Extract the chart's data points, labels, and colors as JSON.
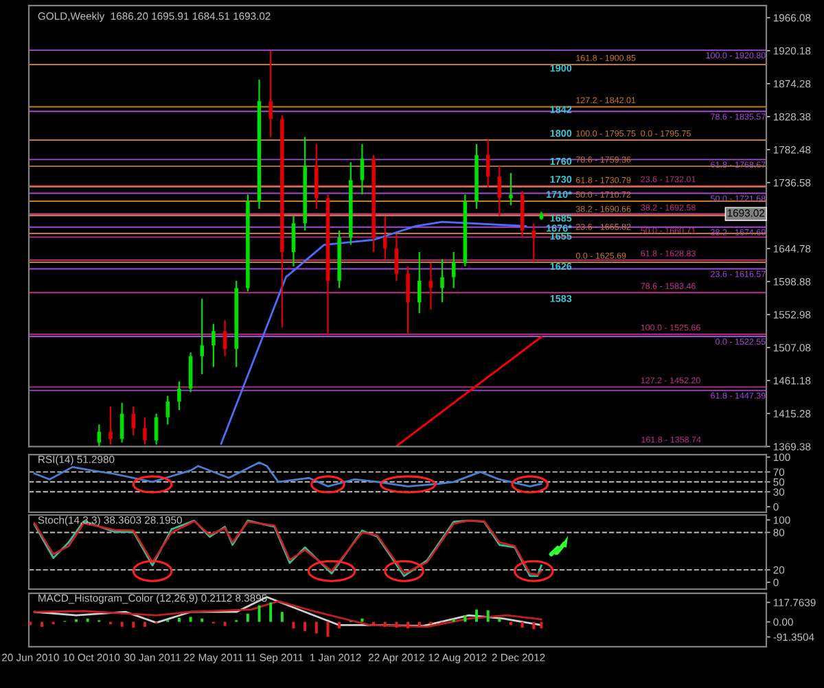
{
  "chart_data": [
    {
      "type": "candlestick",
      "title": "GOLD,Weekly  1686.20 1695.91 1684.51 1693.02",
      "tick_labels": "y",
      "xlim": [
        "2010-06-17",
        "2014-03-02"
      ],
      "ylim": [
        1369.38,
        1983
      ],
      "yticks": [
        1369.38,
        1415.28,
        1461.18,
        1507.08,
        1552.98,
        1598.88,
        1644.78,
        1736.58,
        1782.48,
        1828.38,
        1874.28,
        1920.18,
        1966.08
      ],
      "x": [
        "2010-10-24",
        "2010-11-14",
        "2010-12-05",
        "2010-12-26",
        "2011-01-16",
        "2011-02-06",
        "2011-02-27",
        "2011-03-20",
        "2011-04-10",
        "2011-05-01",
        "2011-05-22",
        "2011-06-12",
        "2011-07-03",
        "2011-07-24",
        "2011-08-14",
        "2011-09-04",
        "2011-09-25",
        "2011-10-16",
        "2011-11-06",
        "2011-11-27",
        "2011-12-18",
        "2012-01-08",
        "2012-01-29",
        "2012-02-19",
        "2012-03-11",
        "2012-04-01",
        "2012-04-22",
        "2012-05-13",
        "2012-06-03",
        "2012-06-24",
        "2012-07-15",
        "2012-08-05",
        "2012-08-26",
        "2012-09-16",
        "2012-10-07",
        "2012-10-28",
        "2012-11-18",
        "2012-12-09",
        "2012-12-30",
        "2013-01-13"
      ],
      "ohlc": [
        [
          1375,
          1400,
          1370,
          1390
        ],
        [
          1390,
          1425,
          1372,
          1380
        ],
        [
          1380,
          1430,
          1375,
          1415
        ],
        [
          1415,
          1425,
          1385,
          1395
        ],
        [
          1395,
          1410,
          1372,
          1378
        ],
        [
          1378,
          1415,
          1372,
          1410
        ],
        [
          1410,
          1440,
          1400,
          1432
        ],
        [
          1432,
          1460,
          1420,
          1450
        ],
        [
          1450,
          1500,
          1445,
          1495
        ],
        [
          1495,
          1575,
          1470,
          1510
        ],
        [
          1510,
          1540,
          1480,
          1530
        ],
        [
          1530,
          1545,
          1495,
          1505
        ],
        [
          1505,
          1600,
          1480,
          1590
        ],
        [
          1590,
          1720,
          1585,
          1710
        ],
        [
          1710,
          1880,
          1700,
          1850
        ],
        [
          1850,
          1920,
          1800,
          1825
        ],
        [
          1825,
          1830,
          1535,
          1640
        ],
        [
          1640,
          1690,
          1620,
          1680
        ],
        [
          1680,
          1800,
          1670,
          1760
        ],
        [
          1760,
          1790,
          1700,
          1715
        ],
        [
          1715,
          1720,
          1525,
          1600
        ],
        [
          1600,
          1670,
          1590,
          1660
        ],
        [
          1660,
          1765,
          1650,
          1740
        ],
        [
          1740,
          1790,
          1720,
          1770
        ],
        [
          1770,
          1775,
          1640,
          1660
        ],
        [
          1660,
          1690,
          1630,
          1645
        ],
        [
          1645,
          1665,
          1600,
          1610
        ],
        [
          1610,
          1620,
          1527,
          1570
        ],
        [
          1570,
          1640,
          1555,
          1600
        ],
        [
          1600,
          1625,
          1560,
          1590
        ],
        [
          1590,
          1630,
          1570,
          1605
        ],
        [
          1605,
          1640,
          1590,
          1625
        ],
        [
          1625,
          1720,
          1620,
          1710
        ],
        [
          1710,
          1790,
          1700,
          1775
        ],
        [
          1775,
          1796,
          1730,
          1745
        ],
        [
          1745,
          1760,
          1690,
          1715
        ],
        [
          1715,
          1750,
          1705,
          1720
        ],
        [
          1720,
          1725,
          1660,
          1670
        ],
        [
          1670,
          1680,
          1626,
          1660
        ],
        [
          1686.2,
          1695.91,
          1684.51,
          1693.02
        ]
      ],
      "colors": [
        "#00e000",
        "#e00000",
        "#00e000",
        "#e00000",
        "#e00000",
        "#00e000",
        "#00e000",
        "#00e000",
        "#00e000",
        "#00e000",
        "#00e000",
        "#e00000",
        "#00e000",
        "#00e000",
        "#00e000",
        "#e00000",
        "#e00000",
        "#00e000",
        "#00e000",
        "#e00000",
        "#e00000",
        "#00e000",
        "#00e000",
        "#00e000",
        "#e00000",
        "#e00000",
        "#e00000",
        "#e00000",
        "#00e000",
        "#e00000",
        "#00e000",
        "#00e000",
        "#00e000",
        "#00e000",
        "#e00000",
        "#e00000",
        "#00e000",
        "#e00000",
        "#e00000",
        "#00e000"
      ],
      "series": [
        {
          "type": "line",
          "color": "#4f6bff",
          "x": [
            "2011-06-05",
            "2011-10-02",
            "2011-12-11",
            "2012-03-11",
            "2012-05-27",
            "2012-07-15",
            "2012-12-16"
          ],
          "values": [
            1373,
            1605,
            1650,
            1657,
            1676,
            1682,
            1676
          ]
        },
        {
          "type": "line",
          "color": "#ff0000",
          "x": [
            "2012-04-22",
            "2013-01-13"
          ],
          "values": [
            1370,
            1522
          ]
        }
      ],
      "ref_lines": [
        {
          "axis": "y",
          "value": 1900.85,
          "color": "#c87a1e"
        },
        {
          "axis": "y",
          "value": 1842.01,
          "color": "#c87a1e"
        },
        {
          "axis": "y",
          "value": 1795.75,
          "color": "#c87a1e"
        },
        {
          "axis": "y",
          "value": 1759.36,
          "color": "#c87a1e"
        },
        {
          "axis": "y",
          "value": 1730.79,
          "color": "#c87a1e"
        },
        {
          "axis": "y",
          "value": 1710.72,
          "color": "#c87a1e"
        },
        {
          "axis": "y",
          "value": 1690.66,
          "color": "#c87a1e"
        },
        {
          "axis": "y",
          "value": 1665.82,
          "color": "#c87a1e"
        },
        {
          "axis": "y",
          "value": 1625.69,
          "color": "#c87a1e"
        },
        {
          "axis": "y",
          "value": 1732.01,
          "color": "#c0308a"
        },
        {
          "axis": "y",
          "value": 1692.58,
          "color": "#c0308a"
        },
        {
          "axis": "y",
          "value": 1660.71,
          "color": "#c0308a"
        },
        {
          "axis": "y",
          "value": 1628.83,
          "color": "#c0308a"
        },
        {
          "axis": "y",
          "value": 1583.46,
          "color": "#c0308a"
        },
        {
          "axis": "y",
          "value": 1525.66,
          "color": "#c0308a"
        },
        {
          "axis": "y",
          "value": 1452.2,
          "color": "#c0308a"
        },
        {
          "axis": "y",
          "value": 1920.8,
          "color": "#a848d8"
        },
        {
          "axis": "y",
          "value": 1835.57,
          "color": "#a848d8"
        },
        {
          "axis": "y",
          "value": 1768.67,
          "color": "#a848d8"
        },
        {
          "axis": "y",
          "value": 1721.68,
          "color": "#a848d8"
        },
        {
          "axis": "y",
          "value": 1674.69,
          "color": "#a848d8"
        },
        {
          "axis": "y",
          "value": 1616.57,
          "color": "#a848d8"
        },
        {
          "axis": "y",
          "value": 1522.55,
          "color": "#a848d8"
        },
        {
          "axis": "y",
          "value": 1447.39,
          "color": "#a848d8"
        },
        {
          "axis": "y",
          "value": 1693.02,
          "label": "1693.02",
          "color": "#808080"
        }
      ],
      "annotations": [
        {
          "text": "1900",
          "x": "2013-03-10",
          "y": 1894.6
        },
        {
          "text": "1842",
          "x": "2013-03-10",
          "y": 1837
        },
        {
          "text": "1800",
          "x": "2013-03-10",
          "y": 1804
        },
        {
          "text": "1760",
          "x": "2013-03-10",
          "y": 1765
        },
        {
          "text": "1730",
          "x": "2013-03-10",
          "y": 1740
        },
        {
          "text": "1710*",
          "x": "2013-03-10",
          "y": 1719
        },
        {
          "text": "1685",
          "x": "2013-03-10",
          "y": 1686
        },
        {
          "text": "1676*",
          "x": "2013-03-10",
          "y": 1672
        },
        {
          "text": "1655",
          "x": "2013-03-10",
          "y": 1661
        },
        {
          "text": "1626",
          "x": "2013-03-10",
          "y": 1619
        },
        {
          "text": "1583",
          "x": "2013-03-10",
          "y": 1574
        },
        {
          "text": "161.8 - 1900.85",
          "x": "2013-03-17",
          "y": 1900.85
        },
        {
          "text": "127.2 - 1842.01",
          "x": "2013-03-17",
          "y": 1842.01
        },
        {
          "text": "100.0 - 1795.75",
          "x": "2013-03-17",
          "y": 1795.75
        },
        {
          "text": "78.6 - 1759.36",
          "x": "2013-03-17",
          "y": 1759.36
        },
        {
          "text": "61.8 - 1730.79",
          "x": "2013-03-17",
          "y": 1730.79
        },
        {
          "text": "50.0 - 1710.72",
          "x": "2013-03-17",
          "y": 1710.72
        },
        {
          "text": "38.2 - 1690.66",
          "x": "2013-03-17",
          "y": 1690.66
        },
        {
          "text": "23.6 - 1665.82",
          "x": "2013-03-17",
          "y": 1665.82
        },
        {
          "text": "0.0 - 1625.69",
          "x": "2013-03-17",
          "y": 1625.69
        },
        {
          "text": "0.0 - 1795.75",
          "x": "2013-07-14",
          "y": 1795.75
        },
        {
          "text": "23.6 - 1732.01",
          "x": "2013-07-14",
          "y": 1732.01
        },
        {
          "text": "38.2 - 1692.58",
          "x": "2013-07-14",
          "y": 1692.58
        },
        {
          "text": "50.0 - 1660.71",
          "x": "2013-07-14",
          "y": 1660.71
        },
        {
          "text": "61.8 - 1628.83",
          "x": "2013-07-14",
          "y": 1628.83
        },
        {
          "text": "78.6 - 1583.46",
          "x": "2013-07-14",
          "y": 1583.46
        },
        {
          "text": "100.0 - 1525.66",
          "x": "2013-07-14",
          "y": 1525.66
        },
        {
          "text": "127.2 - 1452.20",
          "x": "2013-07-14",
          "y": 1452.2
        },
        {
          "text": "100.0 - 1920.80",
          "x": "2014-03-01",
          "y": 1920.8
        },
        {
          "text": "78.6 - 1835.57",
          "x": "2014-03-01",
          "y": 1835.57
        },
        {
          "text": "61.8 - 1768.67",
          "x": "2014-03-01",
          "y": 1768.67
        },
        {
          "text": "50.0 - 1721.68",
          "x": "2014-03-01",
          "y": 1721.68
        },
        {
          "text": "38.2 - 1674.69",
          "x": "2014-03-01",
          "y": 1674.69
        },
        {
          "text": "23.6 - 1616.57",
          "x": "2014-03-01",
          "y": 1616.57
        },
        {
          "text": "0.0 - 1522.55",
          "x": "2014-03-01",
          "y": 1522.55
        },
        {
          "text": "61.8 - 1447.39",
          "x": "2014-03-01",
          "y": 1447.39
        },
        "161.8 - 1358.74"
      ]
    },
    {
      "type": "line",
      "title": "RSI(14) 51.2980",
      "tick_labels": "y",
      "xlim": [
        "2010-06-17",
        "2014-03-02"
      ],
      "ylim": [
        -11,
        105
      ],
      "yticks": [
        0,
        30,
        50,
        70,
        100
      ],
      "series": [
        {
          "color": "#4a7fd0",
          "x": [
            "2010-06-27",
            "2010-07-25",
            "2010-09-05",
            "2010-10-10",
            "2010-11-21",
            "2011-01-30",
            "2011-04-10",
            "2011-04-24",
            "2011-06-19",
            "2011-08-14",
            "2011-08-28",
            "2011-09-18",
            "2011-11-13",
            "2011-12-18",
            "2012-02-05",
            "2012-03-18",
            "2012-05-13",
            "2012-07-08",
            "2012-08-05",
            "2012-09-23",
            "2012-10-28",
            "2012-12-23",
            "2013-01-13"
          ],
          "values": [
            67,
            55,
            80,
            73,
            66,
            50,
            73,
            82,
            58,
            89,
            82,
            50,
            58,
            41,
            55,
            50,
            41,
            46,
            50,
            70,
            55,
            41,
            46
          ]
        }
      ],
      "ref_lines": [
        {
          "axis": "y",
          "value": 70,
          "color": "#c0c0c0",
          "line_style": "dashed"
        },
        {
          "axis": "y",
          "value": 50,
          "color": "#c0c0c0",
          "line_style": "dashed"
        },
        {
          "axis": "y",
          "value": 30,
          "color": "#c0c0c0",
          "line_style": "dashed"
        }
      ]
    },
    {
      "type": "line",
      "title": "Stoch(14,3,3) 38.3603 28.1950",
      "tick_labels": "y",
      "xlim": [
        "2010-06-17",
        "2014-03-02"
      ],
      "ylim": [
        -11,
        108
      ],
      "yticks": [
        0,
        20,
        80,
        100
      ],
      "series": [
        {
          "color": "#30c0a0",
          "x": [
            "2010-06-27",
            "2010-08-01",
            "2010-08-29",
            "2010-09-26",
            "2010-11-21",
            "2010-12-26",
            "2011-01-30",
            "2011-03-06",
            "2011-04-17",
            "2011-05-15",
            "2011-06-12",
            "2011-06-26",
            "2011-07-24",
            "2011-09-11",
            "2011-10-09",
            "2011-11-06",
            "2011-12-25",
            "2012-02-19",
            "2012-03-18",
            "2012-05-06",
            "2012-06-17",
            "2012-08-05",
            "2012-09-02",
            "2012-09-30",
            "2012-10-28",
            "2012-11-25",
            "2012-12-23",
            "2013-01-06",
            "2013-01-13"
          ],
          "values": [
            93,
            39,
            64,
            98,
            81,
            81,
            27,
            85,
            99,
            73,
            89,
            60,
            99,
            89,
            31,
            56,
            14,
            83,
            73,
            10,
            35,
            97,
            99,
            97,
            60,
            56,
            10,
            10,
            27
          ]
        },
        {
          "color": "#d02020",
          "x": [
            "2010-06-27",
            "2010-08-01",
            "2010-08-29",
            "2010-09-26",
            "2010-11-21",
            "2010-12-26",
            "2011-01-30",
            "2011-03-06",
            "2011-04-17",
            "2011-05-15",
            "2011-06-12",
            "2011-06-26",
            "2011-07-24",
            "2011-09-11",
            "2011-10-09",
            "2011-11-06",
            "2011-12-25",
            "2012-02-19",
            "2012-03-18",
            "2012-05-06",
            "2012-06-17",
            "2012-08-05",
            "2012-09-02",
            "2012-09-30",
            "2012-10-28",
            "2012-11-25",
            "2012-12-23",
            "2013-01-06",
            "2013-01-13"
          ],
          "values": [
            95,
            45,
            58,
            95,
            84,
            83,
            32,
            80,
            98,
            76,
            87,
            64,
            97,
            91,
            36,
            52,
            18,
            80,
            75,
            14,
            32,
            94,
            99,
            98,
            64,
            58,
            14,
            12,
            18
          ]
        }
      ],
      "ref_lines": [
        {
          "axis": "y",
          "value": 80,
          "color": "#c0c0c0",
          "line_style": "dashed"
        },
        {
          "axis": "y",
          "value": 20,
          "color": "#c0c0c0",
          "line_style": "dashed"
        }
      ]
    },
    {
      "type": "bar",
      "title": "MACD_Histogram_Color (12,26,9) 0.2112 8.3895",
      "xlim": [
        "2010-06-17",
        "2014-03-02"
      ],
      "ylim": [
        -151,
        173
      ],
      "yticks": [
        {
          "value": -91.3504,
          "label": "-91.3504"
        },
        {
          "value": 0,
          "label": "0.00"
        },
        {
          "value": 117.7639,
          "label": "117.7639"
        }
      ],
      "xticks": [
        {
          "value": "2010-06-20",
          "label": "20 Jun 2010"
        },
        {
          "value": "2010-10-10",
          "label": "10 Oct 2010"
        },
        {
          "value": "2011-01-30",
          "label": "30 Jan 2011"
        },
        {
          "value": "2011-05-22",
          "label": "22 May 2011"
        },
        {
          "value": "2011-09-11",
          "label": "11 Sep 2011"
        },
        {
          "value": "2012-01-01",
          "label": "1 Jan 2012"
        },
        {
          "value": "2012-04-22",
          "label": "22 Apr 2012"
        },
        {
          "value": "2012-08-12",
          "label": "12 Aug 2012"
        },
        {
          "value": "2012-12-02",
          "label": "2 Dec 2012"
        }
      ],
      "series": [
        {
          "type": "bar",
          "x": [
            "2010-06-20",
            "2010-07-11",
            "2010-08-01",
            "2010-08-22",
            "2010-09-12",
            "2010-10-03",
            "2010-10-24",
            "2010-11-14",
            "2010-12-05",
            "2010-12-26",
            "2011-01-16",
            "2011-02-06",
            "2011-02-27",
            "2011-03-20",
            "2011-04-10",
            "2011-05-01",
            "2011-05-22",
            "2011-06-12",
            "2011-07-03",
            "2011-07-24",
            "2011-08-14",
            "2011-09-04",
            "2011-09-25",
            "2011-10-16",
            "2011-11-06",
            "2011-11-27",
            "2011-12-18",
            "2012-01-08",
            "2012-01-29",
            "2012-02-19",
            "2012-03-11",
            "2012-04-01",
            "2012-04-22",
            "2012-05-13",
            "2012-06-03",
            "2012-06-24",
            "2012-07-15",
            "2012-08-05",
            "2012-08-26",
            "2012-09-16",
            "2012-10-07",
            "2012-10-28",
            "2012-11-18",
            "2012-12-09",
            "2012-12-30",
            "2013-01-13"
          ],
          "values": [
            -20,
            -30,
            -15,
            5,
            15,
            20,
            10,
            -15,
            -30,
            -35,
            -30,
            -10,
            10,
            25,
            30,
            20,
            -10,
            -25,
            10,
            50,
            100,
            117,
            60,
            -40,
            -55,
            -70,
            -91,
            -40,
            5,
            20,
            -15,
            -30,
            -35,
            -40,
            -30,
            -15,
            -5,
            15,
            40,
            75,
            70,
            20,
            -20,
            -35,
            -45,
            -40
          ],
          "colors": [
            "#e02020",
            "#e02020",
            "#e02020",
            "#20e020",
            "#20e020",
            "#20e020",
            "#20e020",
            "#e02020",
            "#e02020",
            "#e02020",
            "#e02020",
            "#e02020",
            "#20e020",
            "#20e020",
            "#20e020",
            "#20e020",
            "#e02020",
            "#e02020",
            "#20e020",
            "#20e020",
            "#20e020",
            "#20e020",
            "#20e020",
            "#e02020",
            "#e02020",
            "#e02020",
            "#e02020",
            "#e02020",
            "#20e020",
            "#20e020",
            "#e02020",
            "#e02020",
            "#e02020",
            "#e02020",
            "#e02020",
            "#e02020",
            "#e02020",
            "#20e020",
            "#20e020",
            "#20e020",
            "#20e020",
            "#20e020",
            "#e02020",
            "#e02020",
            "#e02020",
            "#e02020"
          ]
        },
        {
          "type": "line",
          "color": "#d0d0d0",
          "x": [
            "2010-06-27",
            "2010-09-12",
            "2010-12-12",
            "2011-02-06",
            "2011-04-10",
            "2011-07-03",
            "2011-08-28",
            "2011-11-06",
            "2012-01-08",
            "2012-03-18",
            "2012-06-10",
            "2012-09-02",
            "2012-11-04",
            "2013-01-13"
          ],
          "values": [
            60,
            40,
            60,
            -5,
            60,
            60,
            150,
            60,
            -20,
            -20,
            -25,
            40,
            20,
            -20
          ]
        },
        {
          "type": "line",
          "color": "#c02020",
          "x": [
            "2010-06-27",
            "2010-09-26",
            "2011-02-06",
            "2011-04-10",
            "2011-07-31",
            "2011-09-18",
            "2011-11-27",
            "2012-03-04",
            "2012-06-17",
            "2012-09-02",
            "2012-11-11",
            "2013-01-13"
          ],
          "values": [
            60,
            65,
            40,
            60,
            75,
            125,
            60,
            -20,
            -30,
            20,
            40,
            15
          ]
        }
      ]
    }
  ]
}
